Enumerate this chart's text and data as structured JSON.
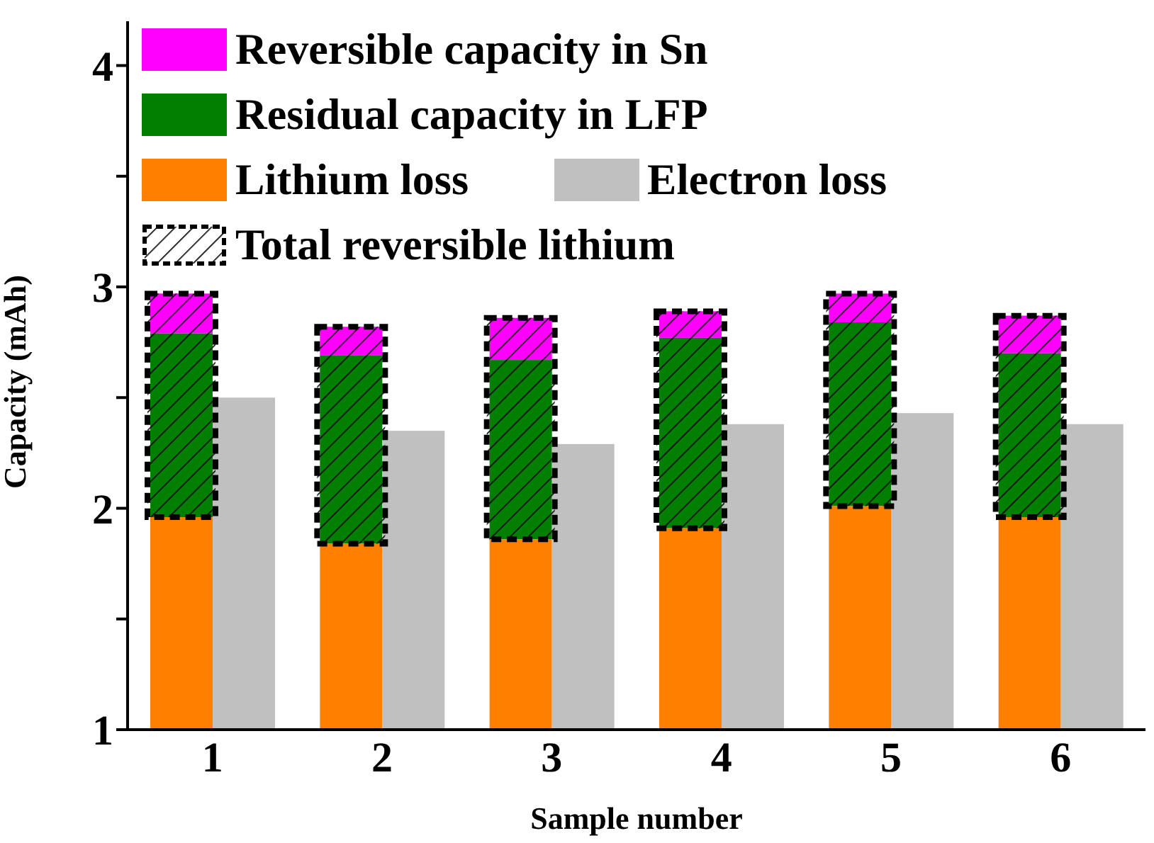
{
  "chart_data": {
    "type": "bar",
    "xlabel": "Sample number",
    "ylabel": "Capacity (mAh)",
    "categories": [
      "1",
      "2",
      "3",
      "4",
      "5",
      "6"
    ],
    "legend": "top left",
    "ylim": [
      1,
      4.2
    ],
    "yticks": [
      1,
      {
        "value": 1.5,
        "label": null
      },
      2,
      {
        "value": 2.5,
        "label": null
      },
      3,
      {
        "value": 3.5,
        "label": null
      },
      4
    ],
    "series": [
      {
        "name": "Reversible capacity in Sn",
        "color": "#ff00ff",
        "base": [
          2.79,
          2.69,
          2.67,
          2.77,
          2.84,
          2.7
        ],
        "values": [
          0.18,
          0.13,
          0.19,
          0.12,
          0.13,
          0.17
        ]
      },
      {
        "name": "Residual capacity in LFP",
        "color": "#007f00",
        "base": [
          1.96,
          1.84,
          1.86,
          1.91,
          2.01,
          1.96
        ],
        "values": [
          0.83,
          0.85,
          0.81,
          0.86,
          0.83,
          0.74
        ]
      },
      {
        "name": "Lithium loss",
        "color": "#ff8000",
        "values": [
          1.96,
          1.84,
          1.86,
          1.91,
          2.01,
          1.96
        ]
      },
      {
        "name": "Electron loss",
        "color": "#c0c0c0",
        "values": [
          2.5,
          2.35,
          2.29,
          2.38,
          2.43,
          2.38
        ]
      },
      {
        "name": "Total reversible lithium",
        "color": "#000000",
        "base": [
          1.96,
          1.84,
          1.86,
          1.91,
          2.01,
          1.96
        ],
        "values": [
          1.01,
          0.98,
          1.0,
          0.98,
          0.96,
          0.91
        ]
      }
    ]
  }
}
